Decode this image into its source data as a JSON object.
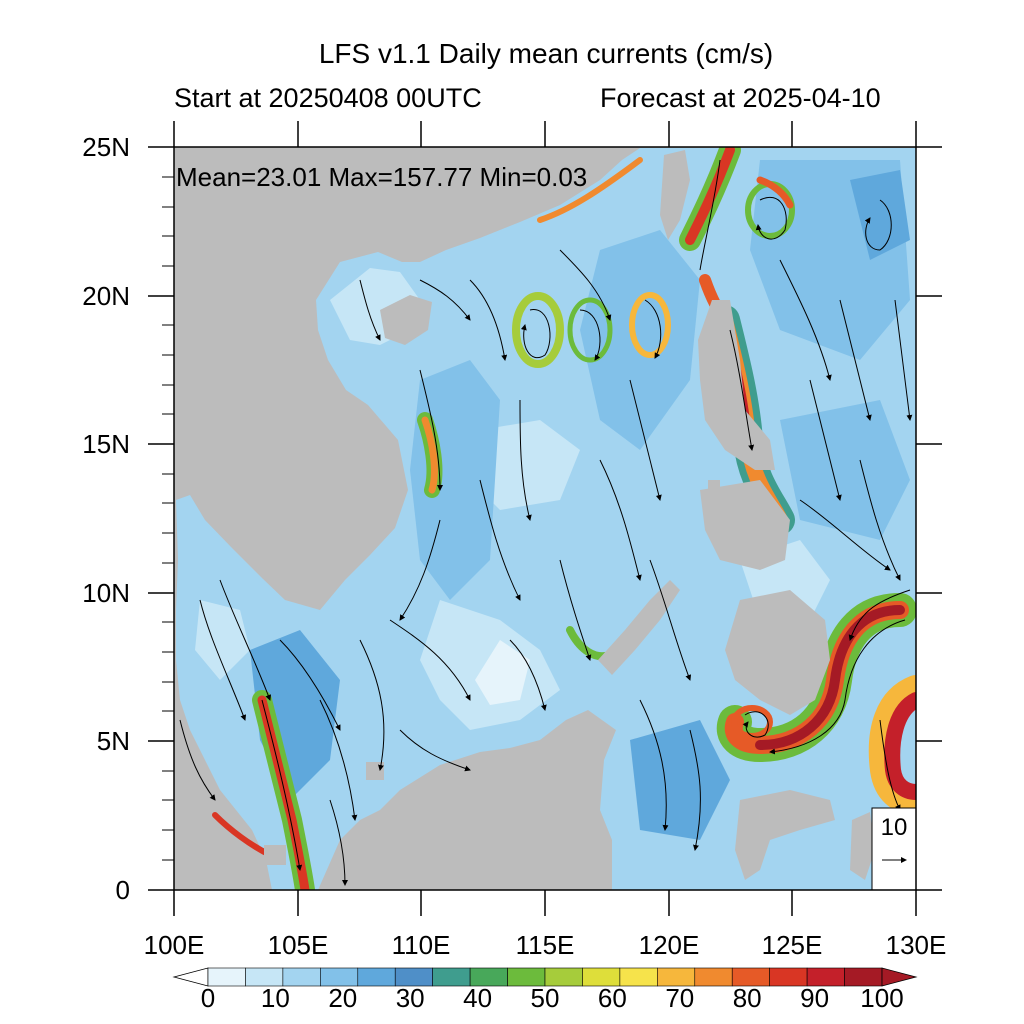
{
  "title": "LFS v1.1 Daily mean currents (cm/s)",
  "subtitle_left": "Start at 20250408 00UTC",
  "subtitle_right": "Forecast at 2025-04-10",
  "stats_text": "Mean=23.01  Max=157.77  Min=0.03",
  "lat_labels": [
    "25N",
    "20N",
    "15N",
    "10N",
    "5N",
    "0"
  ],
  "lon_labels": [
    "100E",
    "105E",
    "110E",
    "115E",
    "120E",
    "125E",
    "130E"
  ],
  "colorbar": {
    "labels": [
      "0",
      "10",
      "20",
      "30",
      "40",
      "50",
      "60",
      "70",
      "80",
      "90",
      "100"
    ],
    "colors": [
      "#e6f4fb",
      "#c6e6f6",
      "#a3d4f0",
      "#82c1e9",
      "#5fa8dc",
      "#4f8fc8",
      "#3f9d8e",
      "#48a85a",
      "#6cbb3c",
      "#a6cc3b",
      "#dede3a",
      "#f6e34b",
      "#f6b73c",
      "#f08a2f",
      "#e65a27",
      "#d93624",
      "#c4202a",
      "#a51a25"
    ]
  },
  "reference_vector": {
    "label": "10",
    "arrow": "→"
  },
  "colors": {
    "land": "#bcbcbc",
    "ocean_base": "#a3d4f0",
    "frame": "#000000"
  }
}
